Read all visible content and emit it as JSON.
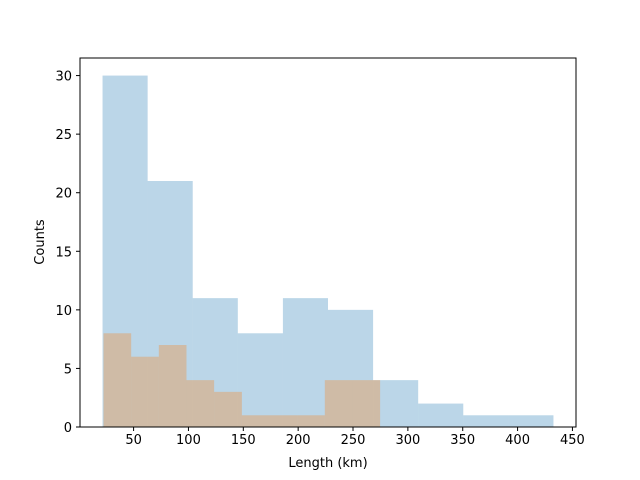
{
  "chart_data": {
    "type": "histogram",
    "x_label": "Length (km)",
    "y_label": "Counts",
    "alpha": 0.3,
    "series": [
      {
        "color": "#1f77b4",
        "bins": [
          21.7,
          62.8,
          103.9,
          145.0,
          186.1,
          227.2,
          268.3,
          309.4,
          350.5,
          391.6,
          432.7
        ],
        "values": [
          30,
          21,
          11,
          8,
          11,
          10,
          4,
          2,
          1,
          1
        ]
      },
      {
        "color": "#ff7f0e",
        "bins": [
          22.6,
          47.8,
          73.0,
          98.2,
          123.4,
          148.7,
          173.9,
          199.1,
          224.3,
          249.5,
          274.7
        ],
        "values": [
          8,
          6,
          7,
          4,
          3,
          1,
          1,
          1,
          4,
          4
        ]
      }
    ],
    "xlim": [
      1.15,
      453.25
    ],
    "ylim": [
      0,
      31.5
    ],
    "xticks": [
      50,
      100,
      150,
      200,
      250,
      300,
      350,
      400,
      450
    ],
    "yticks": [
      0,
      5,
      10,
      15,
      20,
      25,
      30
    ]
  }
}
